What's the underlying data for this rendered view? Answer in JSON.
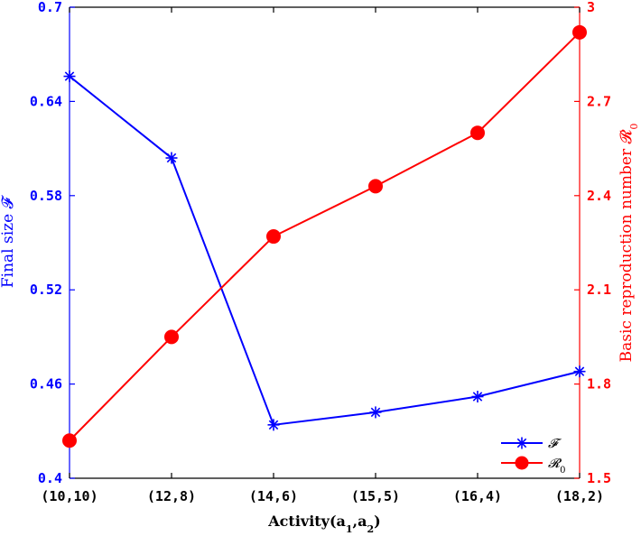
{
  "chart_data": {
    "type": "line",
    "categories": [
      "(10,10)",
      "(12,8)",
      "(14,6)",
      "(15,5)",
      "(16,4)",
      "(18,2)"
    ],
    "xlabel": "Activity(a1,a2)",
    "xlabel_parts": {
      "main": "Activity(a",
      "sub1": "1",
      "sep": ",a",
      "sub2": "2",
      "close": ")"
    },
    "y_left": {
      "label": "Final size 𝓕",
      "ylim": [
        0.4,
        0.7
      ],
      "ticks": [
        "0.4",
        "0.46",
        "0.52",
        "0.58",
        "0.64",
        "0.7"
      ],
      "color": "#0000ff"
    },
    "y_right": {
      "label": "Basic reproduction number 𝓡0",
      "label_parts": {
        "main": "Basic reproduction number 𝓡",
        "sub": "0"
      },
      "ylim": [
        1.5,
        3.0
      ],
      "ticks": [
        "1.5",
        "1.8",
        "2.1",
        "2.4",
        "2.7",
        "3"
      ],
      "color": "#ff0000"
    },
    "series": [
      {
        "name": "𝓕",
        "axis": "left",
        "marker": "asterisk",
        "color": "#0000ff",
        "values": [
          0.656,
          0.604,
          0.434,
          0.442,
          0.452,
          0.468
        ]
      },
      {
        "name": "𝓡0",
        "axis": "right",
        "marker": "circle",
        "color": "#ff0000",
        "values": [
          1.62,
          1.95,
          2.27,
          2.43,
          2.6,
          2.92
        ]
      }
    ],
    "legend": {
      "position": "bottom-right",
      "entries": [
        {
          "label": "𝓕",
          "sub": ""
        },
        {
          "label": "𝓡",
          "sub": "0"
        }
      ]
    },
    "grid": false
  }
}
